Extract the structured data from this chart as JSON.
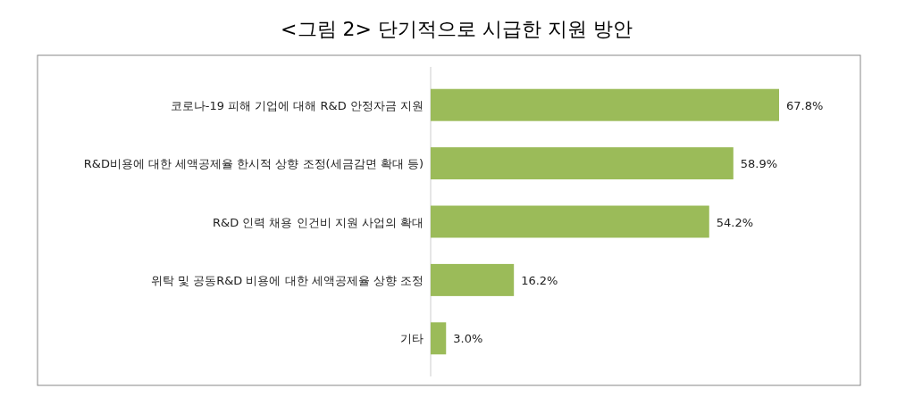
{
  "chart_data": {
    "type": "bar",
    "orientation": "horizontal",
    "title": "<그림 2> 단기적으로 시급한 지원 방안",
    "categories": [
      "코로나-19 피해 기업에 대해 R&D 안정자금 지원",
      "R&D비용에 대한 세액공제율 한시적 상향 조정(세금감면 확대 등)",
      "R&D 인력 채용 인건비 지원 사업의 확대",
      "위탁 및 공동R&D 비용에 대한 세액공제율 상향 조정",
      "기타"
    ],
    "values": [
      67.8,
      58.9,
      54.2,
      16.2,
      3.0
    ],
    "value_labels": [
      "67.8%",
      "58.9%",
      "54.2%",
      "16.2%",
      "3.0%"
    ],
    "color": "#9bbb59"
  }
}
